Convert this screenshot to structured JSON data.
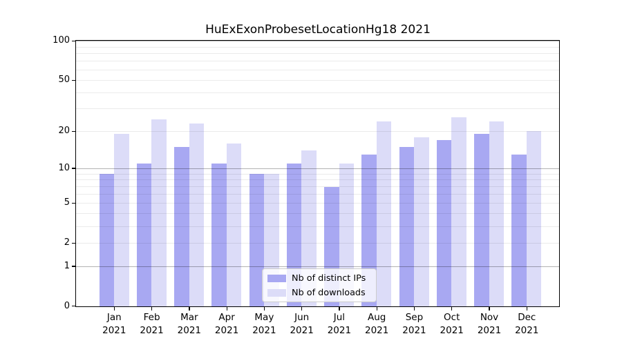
{
  "title": "HuExExonProbesetLocationHg18 2021",
  "chart_data": {
    "type": "bar",
    "title": "HuExExonProbesetLocationHg18 2021",
    "categories": [
      "Jan",
      "Feb",
      "Mar",
      "Apr",
      "May",
      "Jun",
      "Jul",
      "Aug",
      "Sep",
      "Oct",
      "Nov",
      "Dec"
    ],
    "x_tick_year_line": "2021",
    "series": [
      {
        "name": "Nb of distinct IPs",
        "color": "#a8a8f2",
        "values": [
          9,
          11,
          15,
          11,
          9,
          11,
          7,
          13,
          15,
          17,
          19,
          13
        ]
      },
      {
        "name": "Nb of downloads",
        "color": "#dcdcf8",
        "values": [
          19,
          25,
          23,
          16,
          9,
          14,
          11,
          24,
          18,
          26,
          24,
          20
        ]
      }
    ],
    "y_scale": "log10(value+1)",
    "y_tick_labels": [
      "0",
      "1",
      "2",
      "5",
      "10",
      "20",
      "50",
      "100"
    ],
    "y_tick_values": [
      0,
      1,
      2,
      5,
      10,
      20,
      50,
      100
    ],
    "y_major_gridlines": [
      1,
      10,
      100
    ],
    "y_minor_gridlines": [
      2,
      3,
      4,
      5,
      6,
      7,
      8,
      9,
      20,
      30,
      40,
      50,
      60,
      70,
      80,
      90
    ],
    "ylim": [
      0,
      100
    ],
    "grid": true,
    "legend_position": "lower-center-inside",
    "axis_color": "#000000",
    "background_color": "#ffffff"
  }
}
